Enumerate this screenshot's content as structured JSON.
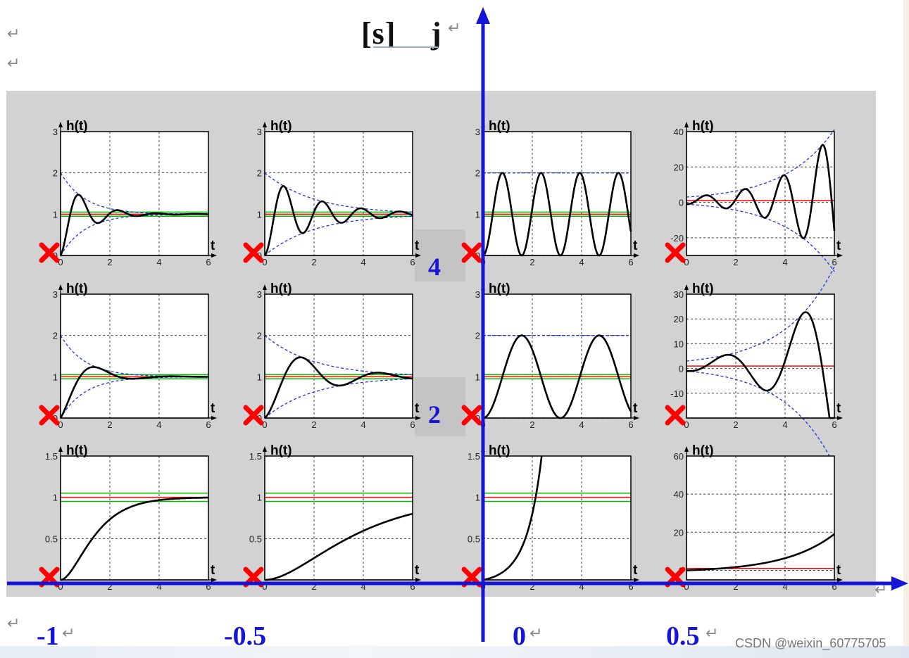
{
  "title": {
    "bracket": "[s]",
    "j": "j"
  },
  "paragraph_marks": [
    "↵",
    "↵",
    "↵",
    "↵",
    "↵",
    "↵",
    "↵",
    "↵"
  ],
  "imag_axis_labels": [
    "4",
    "2"
  ],
  "real_axis_labels": [
    "-1",
    "-0.5",
    "0",
    "0.5"
  ],
  "watermark": "CSDN @weixin_60775705",
  "colors": {
    "axis": "#1515d8",
    "pole": "#ff0000",
    "response": "#000000",
    "envelope": "#2233dd",
    "target": "#ff0000",
    "band": "#00bb00"
  },
  "chart_data": [
    {
      "type": "line",
      "row": 0,
      "col": 0,
      "ylabel": "h(t)",
      "xlabel": "t",
      "xlim": [
        0,
        6
      ],
      "ylim": [
        0,
        3
      ],
      "yticks": [
        0,
        1,
        2,
        3
      ],
      "xticks": [
        0,
        2,
        4,
        6
      ],
      "sigma": -1,
      "omega": 4,
      "response": "underdamped",
      "envelope": true
    },
    {
      "type": "line",
      "row": 0,
      "col": 1,
      "ylabel": "h(t)",
      "xlabel": "t",
      "xlim": [
        0,
        6
      ],
      "ylim": [
        0,
        3
      ],
      "yticks": [
        0,
        1,
        2,
        3
      ],
      "xticks": [
        0,
        2,
        4,
        6
      ],
      "sigma": -0.5,
      "omega": 4,
      "response": "underdamped",
      "envelope": true
    },
    {
      "type": "line",
      "row": 0,
      "col": 2,
      "ylabel": "h(t)",
      "xlabel": "t",
      "xlim": [
        0,
        6
      ],
      "ylim": [
        0,
        3
      ],
      "yticks": [
        0,
        1,
        2,
        3
      ],
      "xticks": [
        0,
        2,
        4,
        6
      ],
      "sigma": 0,
      "omega": 4,
      "response": "undamped",
      "envelope": true
    },
    {
      "type": "line",
      "row": 0,
      "col": 3,
      "ylabel": "h(t)",
      "xlabel": "t",
      "xlim": [
        0,
        6
      ],
      "ylim": [
        -30,
        40
      ],
      "yticks": [
        -20,
        0,
        20,
        40
      ],
      "xticks": [
        0,
        2,
        4,
        6
      ],
      "sigma": 0.5,
      "omega": 4,
      "response": "unstable",
      "envelope": true
    },
    {
      "type": "line",
      "row": 1,
      "col": 0,
      "ylabel": "h(t)",
      "xlabel": "t",
      "xlim": [
        0,
        6
      ],
      "ylim": [
        0,
        3
      ],
      "yticks": [
        0,
        1,
        2,
        3
      ],
      "xticks": [
        0,
        2,
        4,
        6
      ],
      "sigma": -1,
      "omega": 2,
      "response": "underdamped",
      "envelope": true
    },
    {
      "type": "line",
      "row": 1,
      "col": 1,
      "ylabel": "h(t)",
      "xlabel": "t",
      "xlim": [
        0,
        6
      ],
      "ylim": [
        0,
        3
      ],
      "yticks": [
        0,
        1,
        2,
        3
      ],
      "xticks": [
        0,
        2,
        4,
        6
      ],
      "sigma": -0.5,
      "omega": 2,
      "response": "underdamped",
      "envelope": true
    },
    {
      "type": "line",
      "row": 1,
      "col": 2,
      "ylabel": "h(t)",
      "xlabel": "t",
      "xlim": [
        0,
        6
      ],
      "ylim": [
        0,
        3
      ],
      "yticks": [
        0,
        1,
        2,
        3
      ],
      "xticks": [
        0,
        2,
        4,
        6
      ],
      "sigma": 0,
      "omega": 2,
      "response": "undamped",
      "envelope": true
    },
    {
      "type": "line",
      "row": 1,
      "col": 3,
      "ylabel": "h(t)",
      "xlabel": "t",
      "xlim": [
        0,
        6
      ],
      "ylim": [
        -20,
        30
      ],
      "yticks": [
        -10,
        0,
        10,
        20,
        30
      ],
      "xticks": [
        0,
        2,
        4,
        6
      ],
      "sigma": 0.5,
      "omega": 2,
      "response": "unstable",
      "envelope": true
    },
    {
      "type": "line",
      "row": 2,
      "col": 0,
      "ylabel": "h(t)",
      "xlabel": "t",
      "xlim": [
        0,
        6
      ],
      "ylim": [
        0,
        1.5
      ],
      "yticks": [
        0.5,
        1,
        1.5
      ],
      "xticks": [
        0,
        2,
        4,
        6
      ],
      "sigma": -1,
      "omega": 0,
      "response": "overdamped",
      "envelope": false
    },
    {
      "type": "line",
      "row": 2,
      "col": 1,
      "ylabel": "h(t)",
      "xlabel": "t",
      "xlim": [
        0,
        6
      ],
      "ylim": [
        0,
        1.5
      ],
      "yticks": [
        0.5,
        1,
        1.5
      ],
      "xticks": [
        0,
        2,
        4,
        6
      ],
      "sigma": -0.5,
      "omega": 0,
      "response": "overdamped",
      "envelope": false
    },
    {
      "type": "line",
      "row": 2,
      "col": 2,
      "ylabel": "h(t)",
      "xlabel": "t",
      "xlim": [
        0,
        6
      ],
      "ylim": [
        0,
        1.5
      ],
      "yticks": [
        0.5,
        1,
        1.5
      ],
      "xticks": [
        0,
        2,
        4,
        6
      ],
      "sigma": 0,
      "omega": 0,
      "response": "unbounded",
      "envelope": false
    },
    {
      "type": "line",
      "row": 2,
      "col": 3,
      "ylabel": "h(t)",
      "xlabel": "t",
      "xlim": [
        0,
        6
      ],
      "ylim": [
        -5,
        60
      ],
      "yticks": [
        0,
        20,
        40,
        60
      ],
      "xticks": [
        0,
        2,
        4,
        6
      ],
      "sigma": 0.5,
      "omega": 0,
      "response": "exponential",
      "envelope": false
    }
  ]
}
